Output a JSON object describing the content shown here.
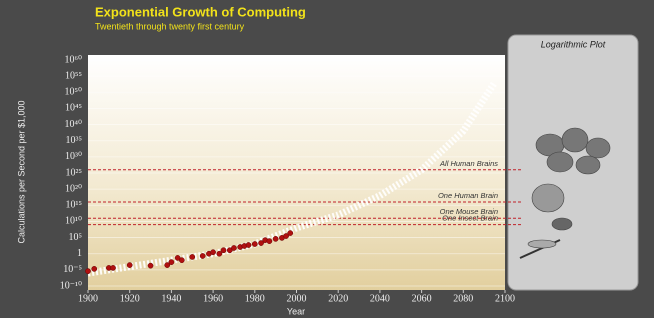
{
  "chart_data": {
    "type": "scatter",
    "title": "Exponential Growth of Computing",
    "subtitle": "Twentieth through twenty first century",
    "panel_title": "Logarithmic Plot",
    "x_label": "Year",
    "y_label": "Calculations per Second per $1,000",
    "y_log": true,
    "xlim": [
      1900,
      2100
    ],
    "xticks": [
      1900,
      1920,
      1940,
      1960,
      1980,
      2000,
      2020,
      2040,
      2060,
      2080,
      2100
    ],
    "ylim": [
      1e-10,
      1e+60
    ],
    "yticks": [
      {
        "value": 1e-10,
        "label": "10⁻¹⁰"
      },
      {
        "value": 1e-05,
        "label": "10⁻⁵"
      },
      1,
      {
        "value": 100000.0,
        "label": "10⁵"
      },
      {
        "value": 10000000000.0,
        "label": "10¹⁰"
      },
      {
        "value": 1000000000000000.0,
        "label": "10¹⁵"
      },
      {
        "value": 1e+20,
        "label": "10²⁰"
      },
      {
        "value": 1e+25,
        "label": "10²⁵"
      },
      {
        "value": 1e+30,
        "label": "10³⁰"
      },
      {
        "value": 1e+35,
        "label": "10³⁵"
      },
      {
        "value": 1e+40,
        "label": "10⁴⁰"
      },
      {
        "value": 1e+45,
        "label": "10⁴⁵"
      },
      {
        "value": 1e+50,
        "label": "10⁵⁰"
      },
      {
        "value": 1e+55,
        "label": "10⁵⁵"
      },
      {
        "value": 1e+60,
        "label": "10⁶⁰"
      }
    ],
    "grid": true,
    "series": [
      {
        "type": "line",
        "color": "#ffffff",
        "x": [
          1900,
          1920,
          1940,
          1960,
          1980,
          2000,
          2020,
          2040,
          2060,
          2080,
          2095
        ],
        "values": [
          1e-06,
          0.0001,
          0.01,
          1,
          1000,
          100000000.0,
          1000000000000.0,
          1e+18,
          1e+26,
          1e+38,
          1e+53
        ]
      },
      {
        "type": "scatter",
        "color": "#b01010",
        "x": [
          1900,
          1903,
          1910,
          1912,
          1920,
          1930,
          1938,
          1940,
          1943,
          1945,
          1950,
          1955,
          1958,
          1960,
          1963,
          1965,
          1968,
          1970,
          1973,
          1975,
          1977,
          1980,
          1983,
          1985,
          1987,
          1990,
          1993,
          1995,
          1997
        ],
        "values": [
          4e-06,
          2e-05,
          4e-05,
          4e-05,
          0.0003,
          0.0002,
          0.0003,
          0.0025,
          0.05,
          0.01,
          0.1,
          0.2,
          1,
          3,
          1,
          12,
          12,
          60,
          120,
          250,
          500,
          1000,
          2000,
          16000,
          8000,
          40000,
          80000,
          300000,
          2500000
        ]
      }
    ],
    "reference_color": "#c0202a",
    "annotations": [
      {
        "text": "All Human Brains",
        "value": 1e+26
      },
      {
        "text": "One Human Brain",
        "value": 1e+16
      },
      {
        "text": "One Mouse Brain",
        "value": 100000000000.0
      },
      {
        "text": "One Insect Brain",
        "value": 1000000000.0
      }
    ]
  }
}
